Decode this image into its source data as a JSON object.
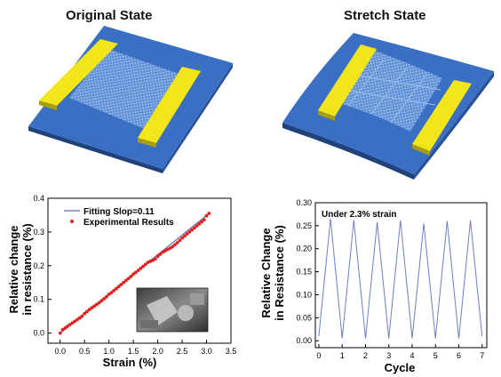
{
  "headings": {
    "left": "Original State",
    "right": "Stretch State"
  },
  "colors": {
    "substrate": "#3a6fc4",
    "substrate_edge": "#20427c",
    "electrode": "#f2e61a",
    "fit_line": "#5b6fb0",
    "points": "#e3201b",
    "cycle_line": "#6f7fc0"
  },
  "chart_data": [
    {
      "type": "scatter",
      "xlabel": "Strain (%)",
      "ylabel": [
        "Relative change",
        "in resistance (%)"
      ],
      "xlim": [
        -0.25,
        3.5
      ],
      "ylim": [
        -0.03,
        0.4
      ],
      "xticks": [
        0.0,
        0.5,
        1.0,
        1.5,
        2.0,
        2.5,
        3.0,
        3.5
      ],
      "yticks": [
        0.0,
        0.1,
        0.2,
        0.3,
        0.4
      ],
      "tick_precision": 1,
      "legend_position": "top-left",
      "series": [
        {
          "name": "Fitting Slop=0.11",
          "style": "line",
          "x": [
            0.0,
            3.05
          ],
          "y": [
            0.0,
            0.355
          ]
        },
        {
          "name": "Experimental Results",
          "style": "points",
          "x": [
            0.0,
            0.05,
            0.1,
            0.15,
            0.2,
            0.25,
            0.3,
            0.35,
            0.4,
            0.45,
            0.5,
            0.55,
            0.6,
            0.65,
            0.7,
            0.75,
            0.8,
            0.85,
            0.9,
            0.95,
            1.0,
            1.05,
            1.1,
            1.15,
            1.2,
            1.25,
            1.3,
            1.35,
            1.4,
            1.45,
            1.5,
            1.55,
            1.6,
            1.65,
            1.7,
            1.75,
            1.8,
            1.85,
            1.9,
            1.95,
            2.0,
            2.05,
            2.1,
            2.15,
            2.2,
            2.25,
            2.3,
            2.35,
            2.4,
            2.45,
            2.5,
            2.55,
            2.6,
            2.65,
            2.7,
            2.75,
            2.8,
            2.85,
            2.9,
            2.95,
            3.0,
            3.05
          ],
          "y": [
            0.0,
            0.01,
            0.015,
            0.02,
            0.025,
            0.03,
            0.035,
            0.04,
            0.045,
            0.05,
            0.058,
            0.064,
            0.07,
            0.075,
            0.08,
            0.085,
            0.09,
            0.096,
            0.102,
            0.108,
            0.115,
            0.12,
            0.126,
            0.132,
            0.138,
            0.144,
            0.15,
            0.156,
            0.162,
            0.168,
            0.175,
            0.18,
            0.186,
            0.192,
            0.198,
            0.204,
            0.21,
            0.213,
            0.216,
            0.22,
            0.228,
            0.234,
            0.24,
            0.244,
            0.248,
            0.252,
            0.256,
            0.262,
            0.268,
            0.275,
            0.282,
            0.288,
            0.294,
            0.3,
            0.306,
            0.312,
            0.318,
            0.324,
            0.33,
            0.336,
            0.348,
            0.355
          ]
        }
      ],
      "inset_photo": true
    },
    {
      "type": "line",
      "annotation": "Under 2.3% strain",
      "xlabel": "Cycle",
      "ylabel": [
        "Relative Change",
        "in Resistance (%)"
      ],
      "xlim": [
        -0.15,
        7.2
      ],
      "ylim": [
        -0.015,
        0.3
      ],
      "xticks": [
        0,
        1,
        2,
        3,
        4,
        5,
        6,
        7
      ],
      "yticks": [
        0.0,
        0.05,
        0.1,
        0.15,
        0.2,
        0.25,
        0.3
      ],
      "tick_precision": 2,
      "series": [
        {
          "x": [
            0.0,
            0.5,
            1.0,
            1.5,
            2.0,
            2.5,
            3.0,
            3.5,
            4.0,
            4.5,
            5.0,
            5.5,
            6.0,
            6.5,
            7.0
          ],
          "y": [
            0.01,
            0.265,
            0.005,
            0.262,
            0.005,
            0.258,
            0.005,
            0.262,
            0.005,
            0.255,
            0.005,
            0.26,
            0.005,
            0.262,
            0.01
          ]
        }
      ]
    }
  ]
}
